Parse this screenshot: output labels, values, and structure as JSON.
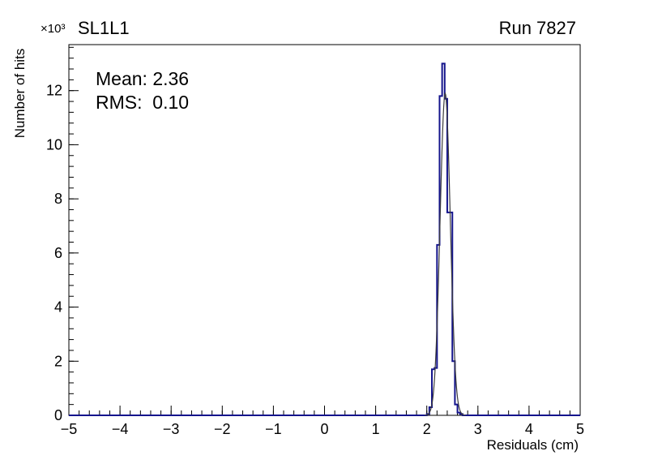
{
  "title": "SL1L1",
  "run_label": "Run 7827",
  "stats": {
    "mean": "Mean: 2.36",
    "rms": "RMS:  0.10"
  },
  "axes": {
    "x_label": "Residuals (cm)",
    "y_label": "Number of hits",
    "y_scale_label": "×10³"
  },
  "chart_data": {
    "type": "bar",
    "subtype": "histogram-step",
    "title": "SL1L1",
    "annotation": "Run 7827",
    "xlabel": "Residuals (cm)",
    "ylabel": "Number of hits",
    "y_units": "×10³ hits",
    "xlim": [
      -5,
      5
    ],
    "ylim": [
      0,
      13.7
    ],
    "x_ticks": [
      -5,
      -4,
      -3,
      -2,
      -1,
      0,
      1,
      2,
      3,
      4,
      5
    ],
    "y_ticks": [
      0,
      2,
      4,
      6,
      8,
      10,
      12
    ],
    "x_minor_step": 0.2,
    "y_minor_step": 0.4,
    "grid": false,
    "legend": "none",
    "bins": {
      "start": 2.0,
      "width": 0.05,
      "values_thousands": [
        0.05,
        0.3,
        1.7,
        1.75,
        6.3,
        11.8,
        13.0,
        11.7,
        7.5,
        7.5,
        2.0,
        0.4,
        0.1,
        0.05
      ]
    },
    "fit": {
      "type": "gaussian",
      "mean": 2.36,
      "sigma": 0.1,
      "amplitude_thousands": 11.9
    },
    "hist_color": "#14148c",
    "fit_color": "#3c3c3c",
    "axis_color": "#000000"
  }
}
